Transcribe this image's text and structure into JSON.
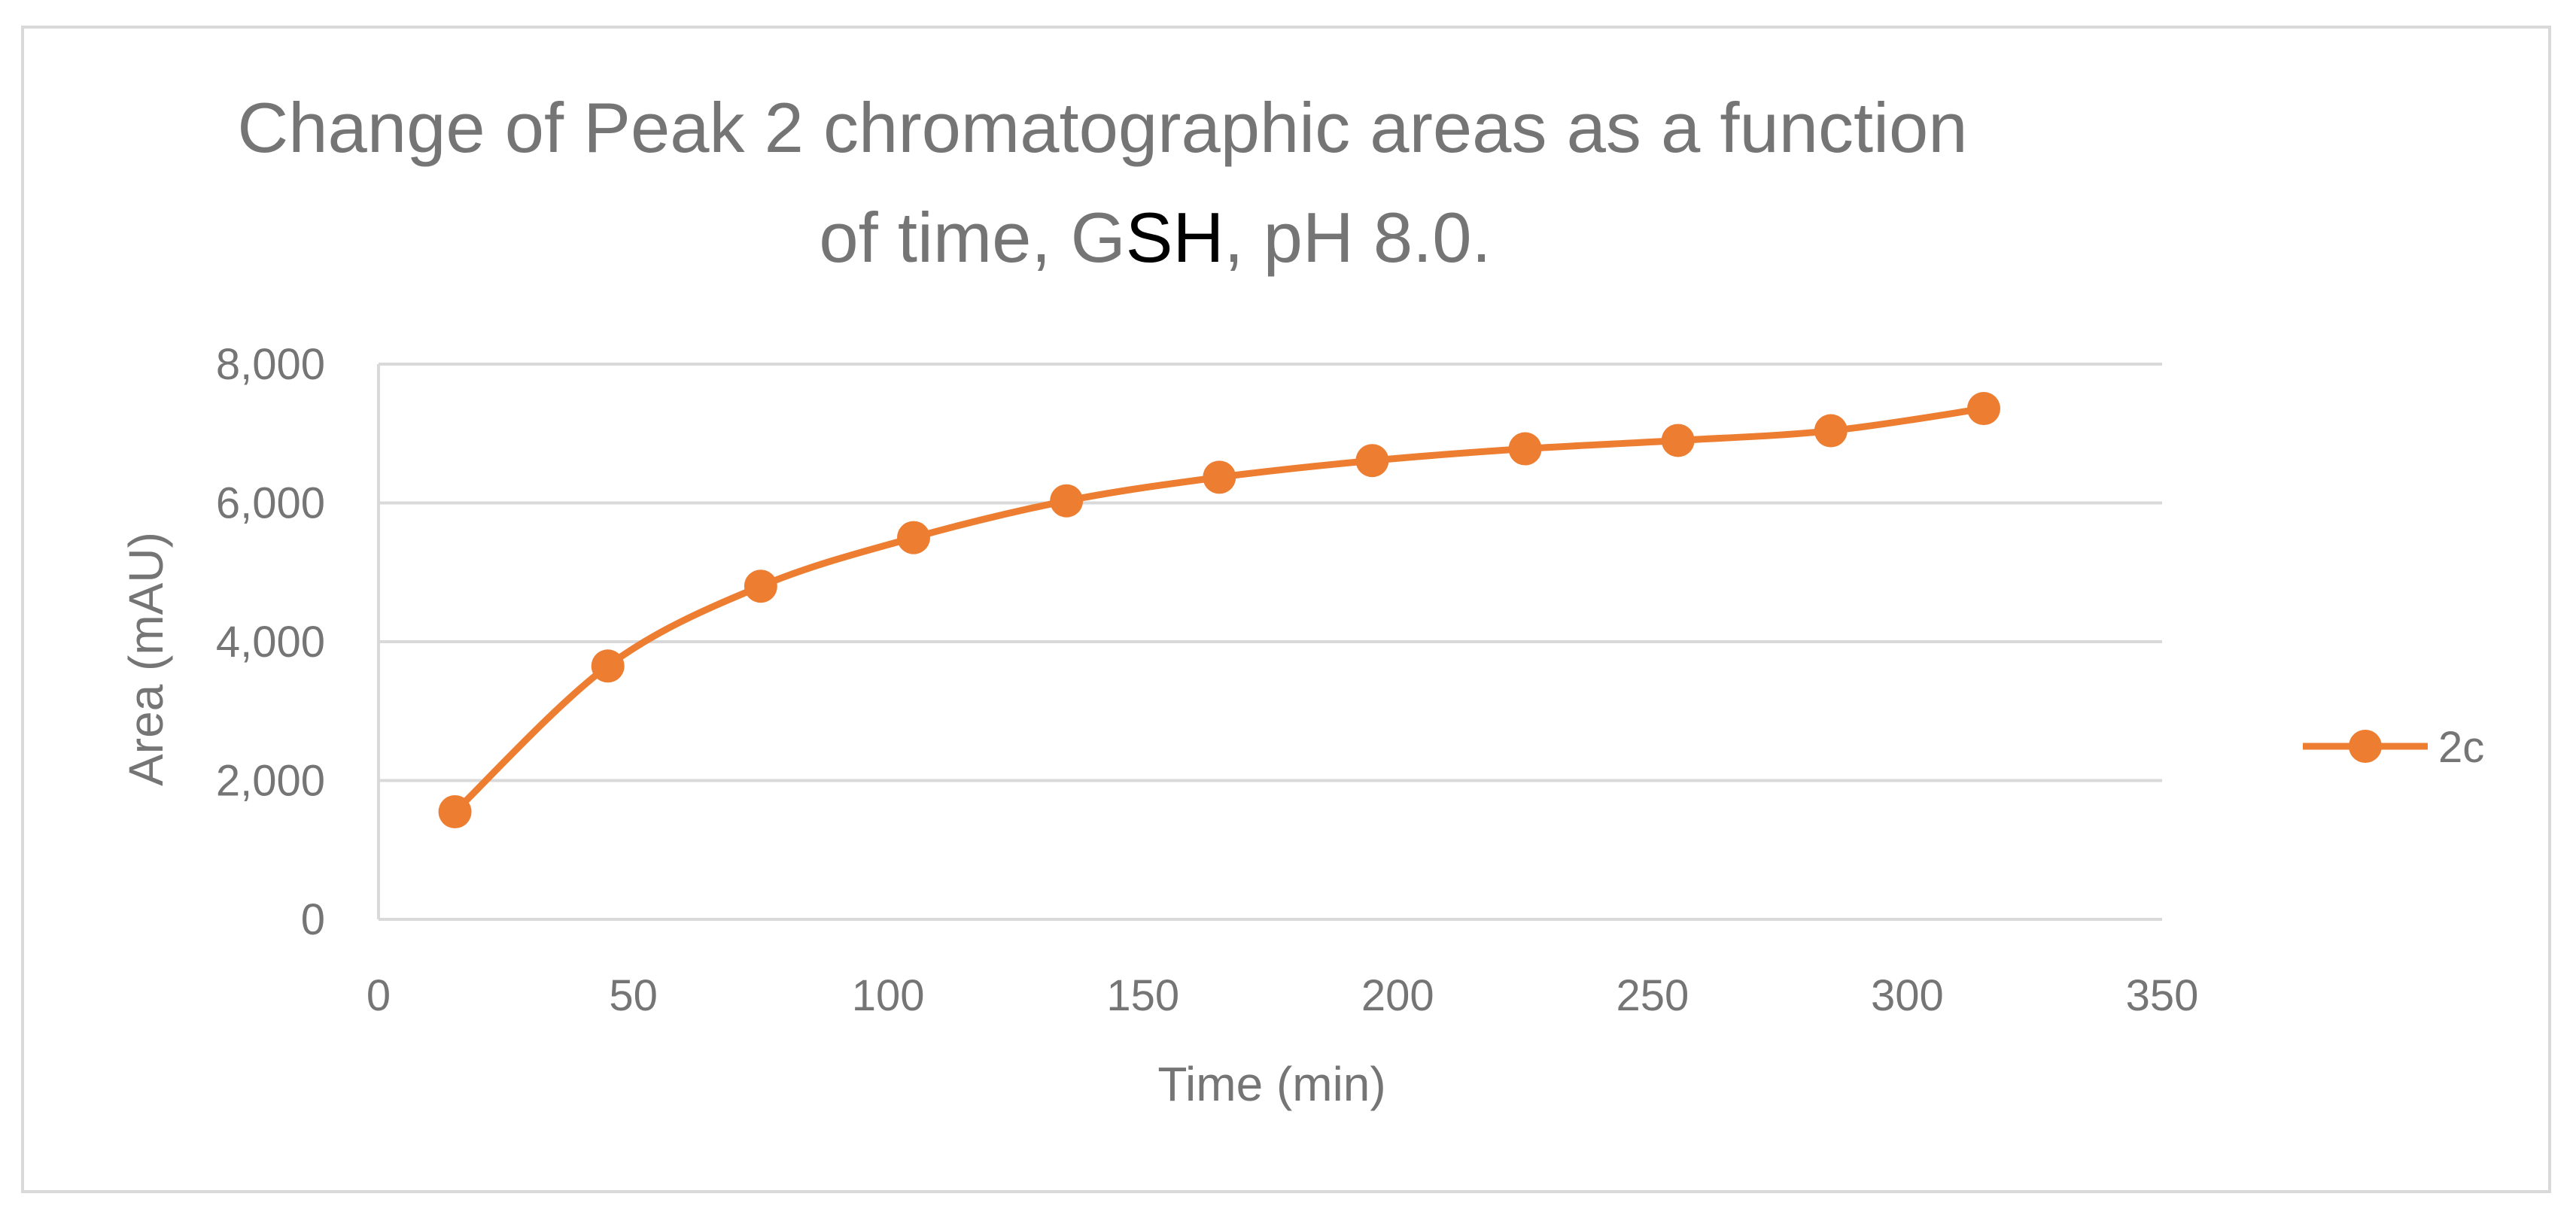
{
  "chart_data": {
    "type": "line",
    "title_line1": "Change of Peak 2 chromatographic areas as a function",
    "title_line2_part1": "of time, G",
    "title_line2_part2": "SH",
    "title_line2_part3": ", pH 8.0.",
    "xlabel": "Time (min)",
    "ylabel": "Area (mAU)",
    "xlim": [
      0,
      350
    ],
    "ylim": [
      0,
      8000
    ],
    "x_ticks": [
      0,
      50,
      100,
      150,
      200,
      250,
      300,
      350
    ],
    "x_tick_labels": [
      "0",
      "50",
      "100",
      "150",
      "200",
      "250",
      "300",
      "350"
    ],
    "y_ticks": [
      0,
      2000,
      4000,
      6000,
      8000
    ],
    "y_tick_labels": [
      "0",
      "2,000",
      "4,000",
      "6,000",
      "8,000"
    ],
    "grid": "horizontal",
    "legend_position": "right",
    "series": [
      {
        "name": "2c",
        "color": "#ed7d31",
        "smooth": true,
        "x": [
          15,
          45,
          75,
          105,
          135,
          165,
          195,
          225,
          255,
          285,
          315
        ],
        "y": [
          1550,
          3650,
          4800,
          5500,
          6030,
          6370,
          6610,
          6780,
          6900,
          7040,
          7360
        ]
      }
    ]
  }
}
